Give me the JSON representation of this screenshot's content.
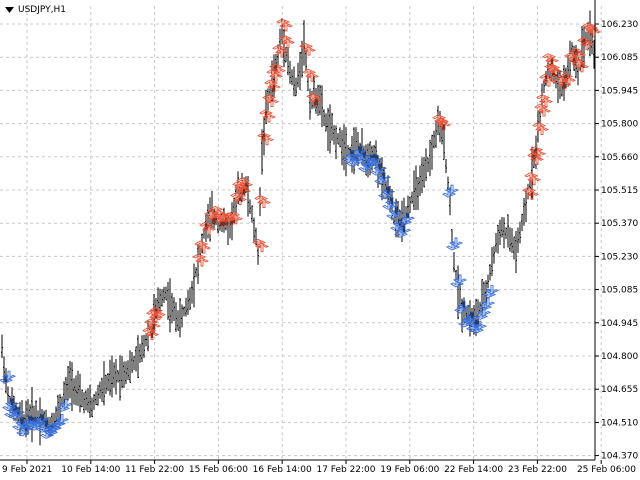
{
  "window": {
    "symbol_label": "USDJPY,H1"
  },
  "colors": {
    "background": "#ffffff",
    "grid": "#c8c8c8",
    "bars": "#000000",
    "bear_arrows": "#e8543a",
    "bull_arrows": "#3a6fd8",
    "axis": "#000000"
  },
  "icons": {
    "collapse": "triangle-down-icon",
    "sell_marker": "fish-arrow-icon",
    "buy_marker": "fish-arrow-icon"
  },
  "chart_data": {
    "type": "ohlc",
    "symbol": "USDJPY",
    "timeframe": "H1",
    "y_ticks": [
      "106.230",
      "106.085",
      "105.945",
      "105.800",
      "105.660",
      "105.515",
      "105.370",
      "105.230",
      "105.085",
      "104.945",
      "104.800",
      "104.655",
      "104.510",
      "104.370"
    ],
    "x_ticks": [
      "9 Feb 2021",
      "10 Feb 14:00",
      "11 Feb 22:00",
      "15 Feb 06:00",
      "16 Feb 14:00",
      "17 Feb 22:00",
      "19 Feb 06:00",
      "22 Feb 14:00",
      "23 Feb 22:00",
      "25 Feb 06:00"
    ],
    "ylim": [
      104.33,
      106.26
    ],
    "grid": true,
    "price_path": [
      [
        0,
        104.9
      ],
      [
        8,
        104.62
      ],
      [
        20,
        104.52
      ],
      [
        35,
        104.55
      ],
      [
        50,
        104.5
      ],
      [
        60,
        104.58
      ],
      [
        70,
        104.7
      ],
      [
        80,
        104.62
      ],
      [
        92,
        104.58
      ],
      [
        100,
        104.65
      ],
      [
        112,
        104.7
      ],
      [
        120,
        104.72
      ],
      [
        130,
        104.75
      ],
      [
        140,
        104.8
      ],
      [
        150,
        104.92
      ],
      [
        158,
        105.02
      ],
      [
        165,
        105.08
      ],
      [
        172,
        105.0
      ],
      [
        180,
        104.95
      ],
      [
        190,
        105.05
      ],
      [
        198,
        105.2
      ],
      [
        205,
        105.35
      ],
      [
        212,
        105.4
      ],
      [
        220,
        105.38
      ],
      [
        230,
        105.36
      ],
      [
        238,
        105.5
      ],
      [
        245,
        105.55
      ],
      [
        252,
        105.4
      ],
      [
        258,
        105.25
      ],
      [
        262,
        105.68
      ],
      [
        266,
        105.85
      ],
      [
        270,
        105.95
      ],
      [
        276,
        106.05
      ],
      [
        282,
        106.2
      ],
      [
        290,
        106.02
      ],
      [
        296,
        105.95
      ],
      [
        304,
        106.15
      ],
      [
        310,
        105.9
      ],
      [
        318,
        105.92
      ],
      [
        326,
        105.8
      ],
      [
        334,
        105.75
      ],
      [
        342,
        105.72
      ],
      [
        350,
        105.68
      ],
      [
        358,
        105.7
      ],
      [
        366,
        105.65
      ],
      [
        374,
        105.68
      ],
      [
        382,
        105.55
      ],
      [
        388,
        105.5
      ],
      [
        394,
        105.4
      ],
      [
        400,
        105.38
      ],
      [
        406,
        105.42
      ],
      [
        414,
        105.5
      ],
      [
        422,
        105.55
      ],
      [
        430,
        105.65
      ],
      [
        438,
        105.8
      ],
      [
        444,
        105.72
      ],
      [
        450,
        105.45
      ],
      [
        454,
        105.2
      ],
      [
        458,
        105.08
      ],
      [
        462,
        105.0
      ],
      [
        468,
        104.98
      ],
      [
        474,
        104.95
      ],
      [
        480,
        105.0
      ],
      [
        486,
        105.08
      ],
      [
        492,
        105.2
      ],
      [
        500,
        105.35
      ],
      [
        508,
        105.32
      ],
      [
        516,
        105.25
      ],
      [
        524,
        105.4
      ],
      [
        530,
        105.55
      ],
      [
        536,
        105.7
      ],
      [
        542,
        105.9
      ],
      [
        548,
        106.05
      ],
      [
        554,
        106.0
      ],
      [
        560,
        105.95
      ],
      [
        566,
        106.0
      ],
      [
        572,
        106.1
      ],
      [
        578,
        106.05
      ],
      [
        584,
        106.15
      ],
      [
        590,
        106.2
      ],
      [
        594,
        106.1
      ]
    ],
    "sell_signal_x": [
      148,
      150,
      152,
      155,
      198,
      200,
      205,
      210,
      215,
      218,
      222,
      228,
      232,
      236,
      238,
      240,
      242,
      258,
      260,
      263,
      265,
      268,
      270,
      272,
      275,
      278,
      282,
      284,
      305,
      308,
      312,
      438,
      440,
      528,
      530,
      533,
      535,
      538,
      540,
      542,
      545,
      548,
      550,
      552,
      560,
      565,
      570,
      575,
      578,
      583,
      588,
      590
    ],
    "buy_signal_x": [
      5,
      8,
      10,
      14,
      18,
      22,
      26,
      30,
      34,
      38,
      42,
      46,
      50,
      54,
      58,
      62,
      348,
      352,
      356,
      360,
      364,
      368,
      372,
      376,
      380,
      384,
      388,
      392,
      396,
      400,
      404,
      448,
      452,
      456,
      460,
      464,
      468,
      472,
      476,
      480,
      484,
      488
    ]
  }
}
